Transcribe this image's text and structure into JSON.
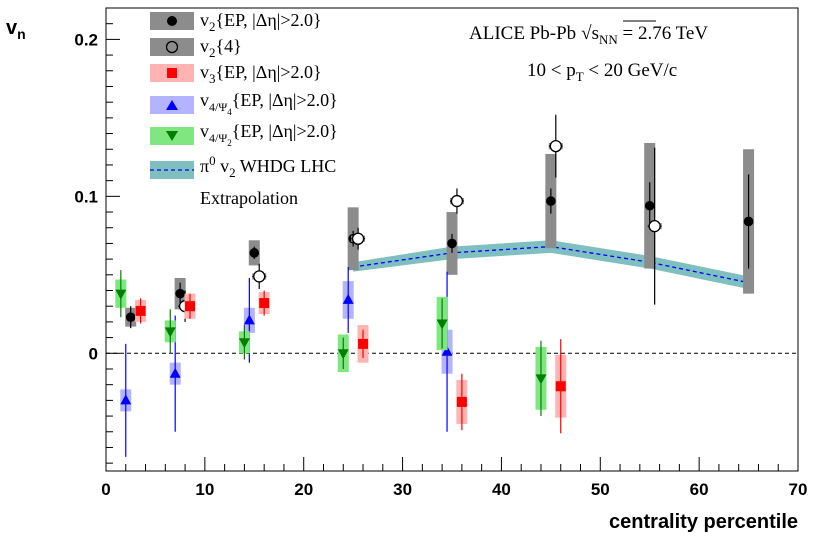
{
  "chart_data": {
    "type": "scatter",
    "title": "",
    "xlabel": "centrality percentile",
    "ylabel": "vn",
    "xlim": [
      0,
      70
    ],
    "ylim": [
      -0.075,
      0.22
    ],
    "x_ticks": [
      0,
      10,
      20,
      30,
      40,
      50,
      60,
      70
    ],
    "y_ticks": [
      0,
      0.1,
      0.2
    ],
    "y_tick_labels": [
      "0",
      "0.1",
      "0.2"
    ],
    "reference_line_y": 0,
    "annotations": [
      "ALICE Pb-Pb √sNN = 2.76 TeV",
      "10 < pT < 20 GeV/c"
    ],
    "legend_position": "top-left",
    "series": [
      {
        "name": "v2{EP, |Δη|>2.0}",
        "marker": "circle-filled",
        "color": "#000000",
        "syst_color": "#8c8c8c",
        "x": [
          2.5,
          7.5,
          15,
          25,
          35,
          45,
          55,
          65
        ],
        "y": [
          0.023,
          0.038,
          0.064,
          0.073,
          0.07,
          0.097,
          0.094,
          0.084
        ],
        "stat_err": [
          0.007,
          0.007,
          0.004,
          0.005,
          0.006,
          0.008,
          0.015,
          0.03
        ],
        "syst_err": [
          0.006,
          0.01,
          0.008,
          0.02,
          0.02,
          0.03,
          0.04,
          0.046
        ]
      },
      {
        "name": "v2{4}",
        "marker": "circle-open",
        "color": "#000000",
        "syst_color": "#8c8c8c",
        "x": [
          8.0,
          15.5,
          25.5,
          35.5,
          45.5,
          55.5
        ],
        "y": [
          0.03,
          0.049,
          0.073,
          0.097,
          0.132,
          0.081
        ],
        "stat_err": [
          0.01,
          0.008,
          0.007,
          0.008,
          0.02,
          0.05
        ],
        "syst_err": [
          0.002,
          0.002,
          0.002,
          0.002,
          0.002,
          0.002
        ]
      },
      {
        "name": "v3{EP, |Δη|>2.0}",
        "marker": "square-filled",
        "color": "#ff0000",
        "syst_color": "#ffb3b3",
        "x": [
          3.5,
          8.5,
          16,
          26,
          36,
          46
        ],
        "y": [
          0.027,
          0.03,
          0.032,
          0.006,
          -0.031,
          -0.021
        ],
        "stat_err": [
          0.008,
          0.008,
          0.008,
          0.009,
          0.018,
          0.03
        ],
        "syst_err": [
          0.007,
          0.008,
          0.007,
          0.012,
          0.014,
          0.02
        ]
      },
      {
        "name": "v4/Ψ4{EP, |Δη|>2.0}",
        "marker": "triangle-up",
        "color": "#0000ff",
        "syst_color": "#b3b3ff",
        "x": [
          2,
          7,
          14.5,
          24.5,
          34.5
        ],
        "y": [
          -0.03,
          -0.013,
          0.021,
          0.034,
          0.001
        ],
        "stat_err": [
          0.036,
          0.037,
          0.027,
          0.021,
          0.051
        ],
        "syst_err": [
          0.007,
          0.007,
          0.008,
          0.012,
          0.014
        ]
      },
      {
        "name": "v4/Ψ2{EP, |Δη|>2.0}",
        "marker": "triangle-down",
        "color": "#008000",
        "syst_color": "#80e680",
        "x": [
          1.5,
          6.5,
          14,
          24,
          34,
          44
        ],
        "y": [
          0.038,
          0.014,
          0.007,
          0.0,
          0.019,
          -0.016
        ],
        "stat_err": [
          0.015,
          0.014,
          0.011,
          0.01,
          0.016,
          0.024
        ],
        "syst_err": [
          0.009,
          0.007,
          0.007,
          0.012,
          0.017,
          0.02
        ]
      },
      {
        "name": "π0 v2 WHDG LHC Extrapolation",
        "type": "band",
        "color": "#0000ff",
        "band_color": "#7fbfbf",
        "x": [
          25,
          35,
          45,
          55,
          65
        ],
        "y": [
          0.055,
          0.064,
          0.068,
          0.058,
          0.045
        ],
        "band_half_width": [
          0.003,
          0.004,
          0.004,
          0.004,
          0.004
        ]
      }
    ]
  },
  "legend": {
    "entries": [
      {
        "id": "v2ep",
        "base": "v",
        "sub": "2",
        "rest": "{EP, |Δη|>2.0}"
      },
      {
        "id": "v24",
        "base": "v",
        "sub": "2",
        "rest": "{4}"
      },
      {
        "id": "v3ep",
        "base": "v",
        "sub": "3",
        "rest": "{EP, |Δη|>2.0}"
      },
      {
        "id": "v4psi4",
        "base": "v",
        "sub": "4/Ψ",
        "sub2": "4",
        "rest": "{EP, |Δη|>2.0}"
      },
      {
        "id": "v4psi2",
        "base": "v",
        "sub": "4/Ψ",
        "sub2": "2",
        "rest": "{EP, |Δη|>2.0}"
      },
      {
        "id": "whdg",
        "base": "π",
        "sup": "0",
        "rest": " v",
        "sub": "2",
        "rest2": " WHDG LHC"
      }
    ],
    "whdg_line2": "Extrapolation"
  },
  "annotation": {
    "experiment": "ALICE Pb-Pb",
    "sqrt_symbol": "√",
    "energy_var": "s",
    "energy_sub": "NN",
    "energy_value": " = 2.76 TeV",
    "pt_prefix": "10 < p",
    "pt_sub": "T",
    "pt_suffix": " < 20 GeV/c"
  }
}
